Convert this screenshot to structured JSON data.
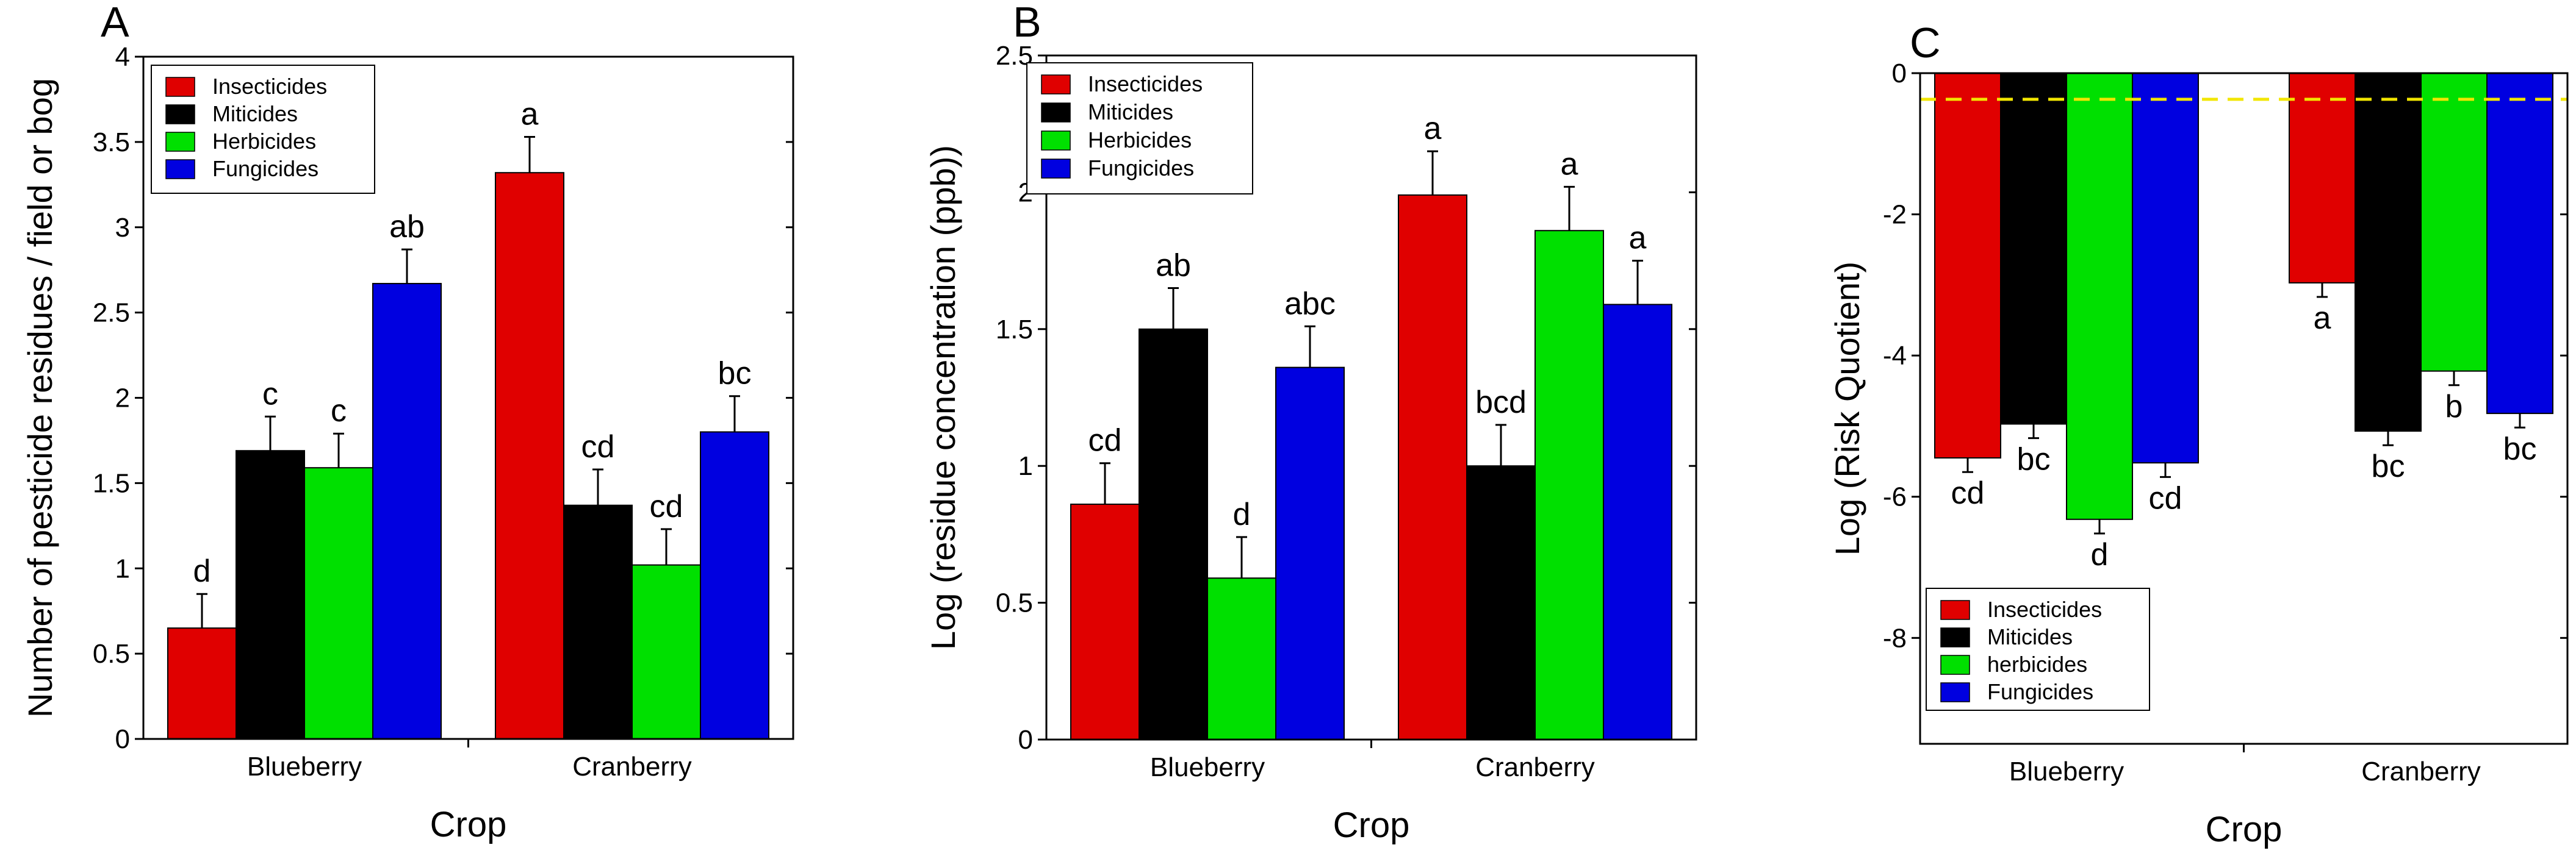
{
  "chart_data": [
    {
      "panel": "A",
      "type": "bar",
      "xlabel": "Crop",
      "ylabel": "Number of pesticide residues / field or bog",
      "ylim": [
        0,
        4
      ],
      "yticks": [
        0,
        0.5,
        1,
        1.5,
        2,
        2.5,
        3,
        3.5,
        4
      ],
      "ytick_labels": [
        "0",
        "0.5",
        "1",
        "1.5",
        "2",
        "2.5",
        "3",
        "3.5",
        "4"
      ],
      "categories": [
        "Blueberry",
        "Cranberry"
      ],
      "series": [
        {
          "name": "Insecticides",
          "color": "#e00000",
          "values": [
            0.65,
            3.32
          ],
          "errors": [
            0.2,
            0.21
          ],
          "letters": [
            "d",
            "a"
          ]
        },
        {
          "name": "Miticides",
          "color": "#000000",
          "values": [
            1.69,
            1.37
          ],
          "errors": [
            0.2,
            0.21
          ],
          "letters": [
            "c",
            "cd"
          ]
        },
        {
          "name": "Herbicides",
          "color": "#00e000",
          "values": [
            1.59,
            1.02
          ],
          "errors": [
            0.2,
            0.21
          ],
          "letters": [
            "c",
            "cd"
          ]
        },
        {
          "name": "Fungicides",
          "color": "#0000e0",
          "values": [
            2.67,
            1.8
          ],
          "errors": [
            0.2,
            0.21
          ],
          "letters": [
            "ab",
            "bc"
          ]
        }
      ],
      "legend_position": "top-left"
    },
    {
      "panel": "B",
      "type": "bar",
      "xlabel": "Crop",
      "ylabel": "Log (residue concentration (ppb))",
      "ylim": [
        0,
        2.5
      ],
      "yticks": [
        0,
        0.5,
        1,
        1.5,
        2,
        2.5
      ],
      "ytick_labels": [
        "0",
        "0.5",
        "1",
        "1.5",
        "2",
        "2.5"
      ],
      "categories": [
        "Blueberry",
        "Cranberry"
      ],
      "series": [
        {
          "name": "Insecticides",
          "color": "#e00000",
          "values": [
            0.86,
            1.99
          ],
          "errors": [
            0.15,
            0.16
          ],
          "letters": [
            "cd",
            "a"
          ]
        },
        {
          "name": "Miticides",
          "color": "#000000",
          "values": [
            1.5,
            1.0
          ],
          "errors": [
            0.15,
            0.15
          ],
          "letters": [
            "ab",
            "bcd"
          ]
        },
        {
          "name": "Herbicides",
          "color": "#00e000",
          "values": [
            0.59,
            1.86
          ],
          "errors": [
            0.15,
            0.16
          ],
          "letters": [
            "d",
            "a"
          ]
        },
        {
          "name": "Fungicides",
          "color": "#0000e0",
          "values": [
            1.36,
            1.59
          ],
          "errors": [
            0.15,
            0.16
          ],
          "letters": [
            "abc",
            "a"
          ]
        }
      ],
      "legend_position": "top-left"
    },
    {
      "panel": "C",
      "type": "bar",
      "xlabel": "Crop",
      "ylabel": "Log (Risk Quotient)",
      "ylim": [
        -9.5,
        0
      ],
      "yticks": [
        0,
        -2,
        -4,
        -6,
        -8
      ],
      "ytick_labels": [
        "0",
        "-2",
        "-4",
        "-6",
        "-8"
      ],
      "categories": [
        "Blueberry",
        "Cranberry"
      ],
      "series": [
        {
          "name": "Insecticides",
          "color": "#e00000",
          "values": [
            -5.45,
            -2.97
          ],
          "errors": [
            0.2,
            0.2
          ],
          "letters": [
            "cd",
            "a"
          ]
        },
        {
          "name": "Miticides",
          "color": "#000000",
          "values": [
            -4.97,
            -5.07
          ],
          "errors": [
            0.2,
            0.2
          ],
          "letters": [
            "bc",
            "bc"
          ]
        },
        {
          "name": "herbicides",
          "color": "#00e000",
          "values": [
            -6.32,
            -4.22
          ],
          "errors": [
            0.2,
            0.2
          ],
          "letters": [
            "d",
            "b"
          ]
        },
        {
          "name": "Fungicides",
          "color": "#0000e0",
          "values": [
            -5.52,
            -4.82
          ],
          "errors": [
            0.2,
            0.2
          ],
          "letters": [
            "cd",
            "bc"
          ]
        }
      ],
      "reference_line": {
        "y": -0.37,
        "color": "#f2e600",
        "style": "dashed"
      },
      "legend_position": "bottom-left"
    }
  ]
}
